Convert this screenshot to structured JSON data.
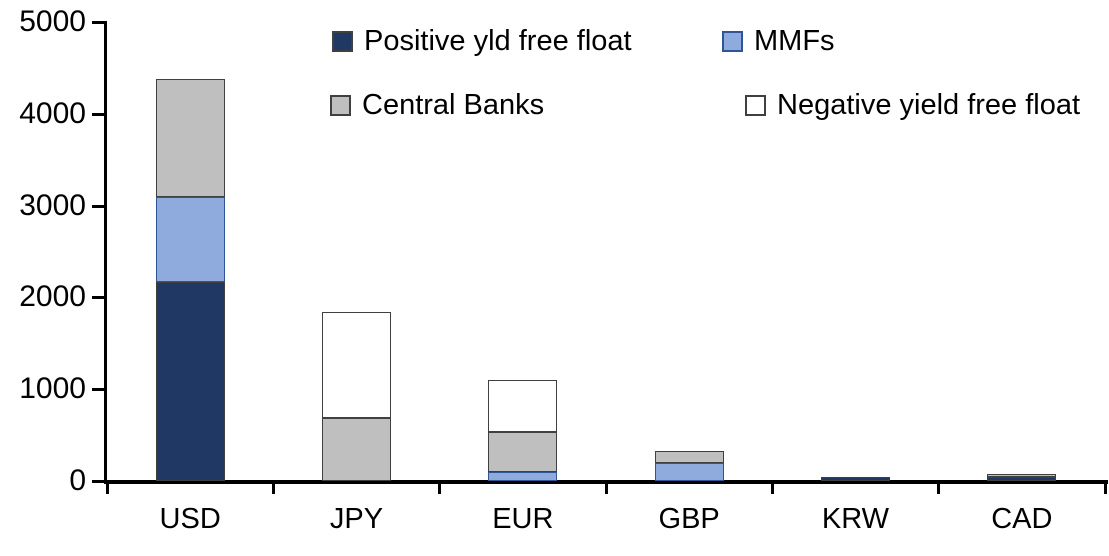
{
  "chart_data": {
    "type": "bar",
    "stacked": true,
    "title": "",
    "xlabel": "",
    "ylabel": "",
    "categories": [
      "USD",
      "JPY",
      "EUR",
      "GBP",
      "KRW",
      "CAD"
    ],
    "series": [
      {
        "name": "Positive yld free float",
        "color": "#1F3864",
        "border": "#404040",
        "values": [
          2170,
          0,
          0,
          0,
          45,
          40
        ]
      },
      {
        "name": "MMFs",
        "color": "#8FAADC",
        "border": "#2F5597",
        "values": [
          920,
          0,
          100,
          200,
          0,
          0
        ]
      },
      {
        "name": "Central Banks",
        "color": "#BFBFBF",
        "border": "#404040",
        "values": [
          1290,
          690,
          430,
          130,
          0,
          35
        ]
      },
      {
        "name": "Negative yield free float",
        "color": "#FFFFFF",
        "border": "#404040",
        "values": [
          0,
          1150,
          570,
          0,
          0,
          0
        ]
      }
    ],
    "totals": [
      4380,
      1840,
      1100,
      330,
      45,
      75
    ],
    "ylim": [
      0,
      5000
    ],
    "yticks": [
      0,
      1000,
      2000,
      3000,
      4000,
      5000
    ],
    "grid": false,
    "legend_position": "top, two columns, two rows",
    "axis_color": "#000000",
    "text_color": "#000000",
    "background_color": "#FFFFFF"
  }
}
